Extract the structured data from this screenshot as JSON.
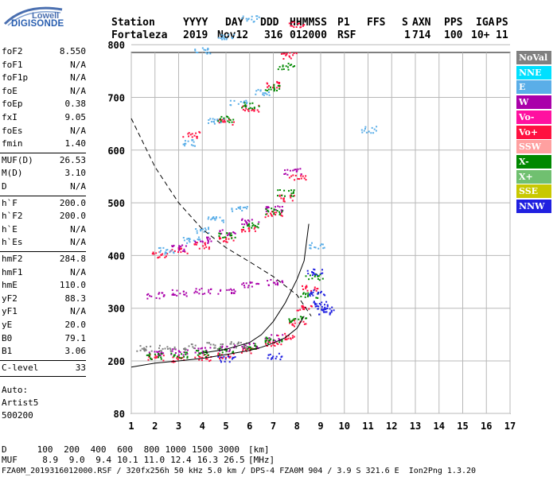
{
  "logo": {
    "line1": "Lowell",
    "line2": "DIGISONDE"
  },
  "header": {
    "labels": [
      "Station",
      "YYYY",
      "DAY",
      "DDD",
      "HHMMSS",
      "P1",
      "FFS",
      "S",
      "AXN",
      "PPS",
      "IGA",
      "PS"
    ],
    "values": [
      "Fortaleza",
      "2019",
      "Nov12",
      "316",
      "012000",
      "RSF",
      "",
      "1",
      "714",
      "100",
      "10+",
      "11"
    ]
  },
  "params": {
    "group1": [
      {
        "name": "foF2",
        "value": "8.550"
      },
      {
        "name": "foF1",
        "value": "N/A"
      },
      {
        "name": "foF1p",
        "value": "N/A"
      },
      {
        "name": "foE",
        "value": "N/A"
      },
      {
        "name": "foEp",
        "value": "0.38"
      },
      {
        "name": "fxI",
        "value": "9.05"
      },
      {
        "name": "foEs",
        "value": "N/A"
      },
      {
        "name": "fmin",
        "value": "1.40"
      }
    ],
    "group2": [
      {
        "name": "MUF(D)",
        "value": "26.53"
      },
      {
        "name": "M(D)",
        "value": "3.10"
      },
      {
        "name": "D",
        "value": "N/A"
      }
    ],
    "group3": [
      {
        "name": "h`F",
        "value": "200.0"
      },
      {
        "name": "h`F2",
        "value": "200.0"
      },
      {
        "name": "h`E",
        "value": "N/A"
      },
      {
        "name": "h`Es",
        "value": "N/A"
      }
    ],
    "group4": [
      {
        "name": "hmF2",
        "value": "284.8"
      },
      {
        "name": "hmF1",
        "value": "N/A"
      },
      {
        "name": "hmE",
        "value": "110.0"
      },
      {
        "name": "yF2",
        "value": "88.3"
      },
      {
        "name": "yF1",
        "value": "N/A"
      },
      {
        "name": "yE",
        "value": "20.0"
      },
      {
        "name": "B0",
        "value": "79.1"
      },
      {
        "name": "B1",
        "value": "3.06"
      }
    ],
    "group5": [
      {
        "name": "C-level",
        "value": "33"
      }
    ],
    "auto_lines": [
      "Auto:",
      "Artist5",
      "500200"
    ]
  },
  "legend": [
    {
      "label": "NoVal",
      "color": "#808080"
    },
    {
      "label": "NNE",
      "color": "#00e0ff"
    },
    {
      "label": "E",
      "color": "#5aaee8"
    },
    {
      "label": "W",
      "color": "#aa00aa"
    },
    {
      "label": "Vo-",
      "color": "#ff10a0"
    },
    {
      "label": "Vo+",
      "color": "#ff1040"
    },
    {
      "label": "SSW",
      "color": "#ffa0a0"
    },
    {
      "label": "X-",
      "color": "#008800"
    },
    {
      "label": "X+",
      "color": "#70c070"
    },
    {
      "label": "SSE",
      "color": "#c8c800"
    },
    {
      "label": "NNW",
      "color": "#2020e0"
    }
  ],
  "chart_data": {
    "type": "scatter",
    "xlim": [
      1,
      17
    ],
    "ylim": [
      80,
      900
    ],
    "x_ticks": [
      1,
      2,
      3,
      4,
      5,
      6,
      7,
      8,
      9,
      10,
      11,
      12,
      13,
      14,
      15,
      16,
      17
    ],
    "y_ticks": [
      80,
      200,
      300,
      400,
      500,
      600,
      700,
      800,
      900
    ],
    "grid": true,
    "legend_position": "right",
    "series": [
      {
        "name": "Vo+",
        "color": "#ff1040",
        "points": [
          [
            2.0,
            208
          ],
          [
            3.0,
            205
          ],
          [
            4.0,
            207
          ],
          [
            5.0,
            212
          ],
          [
            6.0,
            220
          ],
          [
            7.0,
            235
          ],
          [
            7.5,
            248
          ],
          [
            8.0,
            272
          ],
          [
            8.3,
            300
          ],
          [
            8.5,
            340
          ],
          [
            2.2,
            403
          ],
          [
            3.0,
            410
          ],
          [
            4.0,
            420
          ],
          [
            5.0,
            432
          ],
          [
            6.0,
            450
          ],
          [
            7.0,
            480
          ],
          [
            7.6,
            510
          ],
          [
            8.0,
            550
          ],
          [
            3.5,
            630
          ],
          [
            5.0,
            655
          ],
          [
            6.0,
            680
          ],
          [
            7.0,
            725
          ],
          [
            7.6,
            780
          ],
          [
            8.0,
            840
          ]
        ]
      },
      {
        "name": "W",
        "color": "#aa00aa",
        "points": [
          [
            2.0,
            215
          ],
          [
            3.0,
            218
          ],
          [
            4.0,
            222
          ],
          [
            5.0,
            225
          ],
          [
            6.0,
            230
          ],
          [
            7.0,
            245
          ],
          [
            2.0,
            325
          ],
          [
            3.0,
            330
          ],
          [
            4.0,
            333
          ],
          [
            5.0,
            333
          ],
          [
            6.0,
            345
          ],
          [
            7.0,
            350
          ],
          [
            3.0,
            415
          ],
          [
            4.0,
            430
          ],
          [
            5.0,
            445
          ],
          [
            6.0,
            465
          ],
          [
            7.0,
            490
          ],
          [
            7.8,
            560
          ]
        ]
      },
      {
        "name": "E",
        "color": "#5aaee8",
        "points": [
          [
            2.5,
            410
          ],
          [
            3.5,
            430
          ],
          [
            4.0,
            450
          ],
          [
            4.5,
            470
          ],
          [
            5.5,
            490
          ],
          [
            3.5,
            615
          ],
          [
            4.5,
            655
          ],
          [
            5.5,
            690
          ],
          [
            6.5,
            710
          ],
          [
            4.0,
            790
          ],
          [
            5.0,
            815
          ],
          [
            6.0,
            850
          ],
          [
            8.8,
            420
          ],
          [
            11.0,
            640
          ]
        ]
      },
      {
        "name": "X-",
        "color": "#008800",
        "points": [
          [
            2.0,
            210
          ],
          [
            3.0,
            212
          ],
          [
            4.0,
            215
          ],
          [
            5.0,
            220
          ],
          [
            6.0,
            228
          ],
          [
            7.0,
            240
          ],
          [
            8.0,
            280
          ],
          [
            8.5,
            325
          ],
          [
            8.7,
            360
          ],
          [
            5.0,
            440
          ],
          [
            6.0,
            458
          ],
          [
            7.0,
            485
          ],
          [
            7.5,
            520
          ],
          [
            5.0,
            660
          ],
          [
            6.0,
            685
          ],
          [
            7.0,
            720
          ],
          [
            7.5,
            760
          ]
        ]
      },
      {
        "name": "NNW",
        "color": "#2020e0",
        "points": [
          [
            8.8,
            330
          ],
          [
            9.0,
            310
          ],
          [
            9.1,
            300
          ],
          [
            9.2,
            295
          ],
          [
            8.7,
            370
          ],
          [
            7.0,
            210
          ],
          [
            5.0,
            205
          ]
        ]
      },
      {
        "name": "NoVal",
        "color": "#808080",
        "points": [
          [
            1.5,
            225
          ],
          [
            2.5,
            225
          ],
          [
            3.5,
            228
          ],
          [
            4.5,
            230
          ],
          [
            5.5,
            232
          ]
        ]
      }
    ],
    "curves": [
      {
        "name": "virtual-height-fit",
        "style": "solid",
        "points": [
          [
            1.0,
            186
          ],
          [
            2.0,
            195
          ],
          [
            3.0,
            200
          ],
          [
            4.0,
            205
          ],
          [
            5.0,
            212
          ],
          [
            6.0,
            220
          ],
          [
            6.5,
            226
          ],
          [
            7.0,
            234
          ],
          [
            7.5,
            244
          ],
          [
            8.0,
            262
          ],
          [
            8.3,
            285
          ]
        ]
      },
      {
        "name": "profile",
        "style": "solid",
        "points": [
          [
            4.0,
            215
          ],
          [
            5.0,
            222
          ],
          [
            6.0,
            235
          ],
          [
            6.5,
            250
          ],
          [
            7.0,
            275
          ],
          [
            7.5,
            310
          ],
          [
            8.0,
            355
          ],
          [
            8.3,
            390
          ],
          [
            8.5,
            460
          ]
        ]
      },
      {
        "name": "muf-curve",
        "style": "dashed",
        "points": [
          [
            1.0,
            660
          ],
          [
            2.0,
            568
          ],
          [
            3.0,
            500
          ],
          [
            4.0,
            450
          ],
          [
            5.0,
            415
          ],
          [
            6.0,
            388
          ],
          [
            7.0,
            360
          ],
          [
            8.0,
            325
          ],
          [
            8.6,
            285
          ]
        ]
      }
    ]
  },
  "footer": {
    "rows": [
      {
        "label": "D  ",
        "values": [
          " 100",
          " 200",
          " 400",
          " 600",
          " 800",
          "1000",
          "1500",
          "3000"
        ],
        "unit": "[km]"
      },
      {
        "label": "MUF",
        "values": [
          "  8.9",
          "  9.0",
          "  9.4",
          " 10.1",
          " 11.0",
          " 12.4",
          " 16.3",
          " 26.5"
        ],
        "unit": "[MHz]"
      }
    ],
    "info": "FZA0M_2019316012000.RSF / 320fx256h 50 kHz 5.0 km / DPS-4 FZA0M 904 / 3.9 S 321.6 E  Ion2Png 1.3.20"
  }
}
